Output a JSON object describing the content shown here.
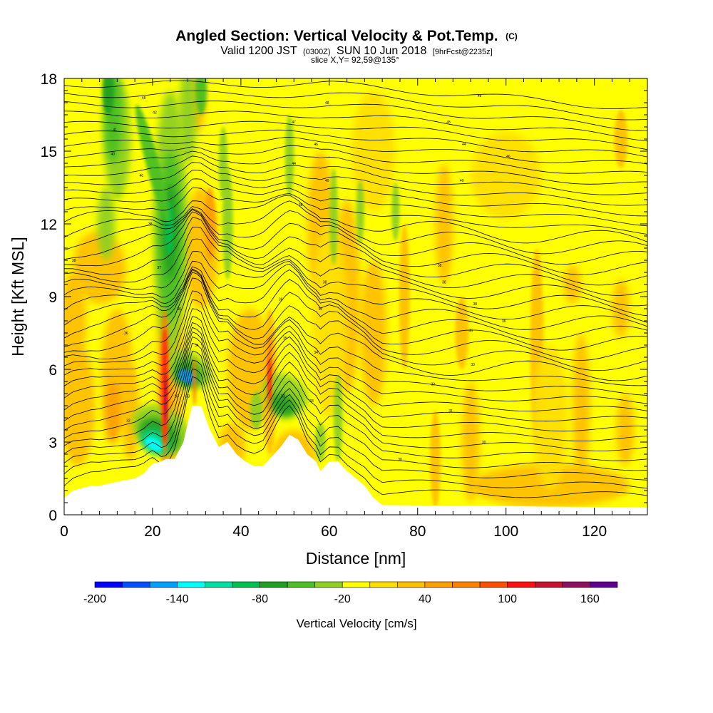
{
  "header": {
    "title_main": "Angled Section: Vertical Velocity & Pot.Temp.",
    "title_suffix": "(C)",
    "valid_a": "Valid 1200 JST",
    "valid_b": "(0300Z)",
    "valid_c": "SUN 10 Jun 2018",
    "valid_d": "[9hrFcst@2235z]",
    "slice": "slice X,Y= 92,59@135°"
  },
  "chart_data": {
    "type": "heatmap",
    "xlabel": "Distance [nm]",
    "ylabel": "Height [Kft MSL]",
    "xlim": [
      0,
      132
    ],
    "ylim": [
      0,
      18
    ],
    "x_ticks": [
      0,
      20,
      40,
      60,
      80,
      100,
      120
    ],
    "x_tick_labels": [
      "0",
      "20",
      "40",
      "60",
      "80",
      "100",
      "120"
    ],
    "y_ticks": [
      0,
      3,
      6,
      9,
      12,
      15,
      18
    ],
    "y_tick_labels": [
      "0",
      "3",
      "6",
      "9",
      "12",
      "15",
      "18"
    ],
    "background_field": "yellow (-20 to 20 cm/s) dominant",
    "colorbar": {
      "label": "Vertical Velocity [cm/s]",
      "min": -200,
      "max": 180,
      "step": 20,
      "tick_values": [
        -200,
        -140,
        -80,
        -20,
        40,
        100,
        160
      ],
      "tick_labels": [
        "-200",
        "-140",
        "-80",
        "-20",
        "40",
        "100",
        "160"
      ],
      "colors": [
        "#0000ff",
        "#0050ff",
        "#00a0ff",
        "#00ffff",
        "#00e0a0",
        "#00c050",
        "#20a020",
        "#4cc020",
        "#90d020",
        "#ffff00",
        "#ffe000",
        "#ffc000",
        "#ffa000",
        "#ff8000",
        "#ff5000",
        "#ff1010",
        "#c81030",
        "#901060",
        "#600090"
      ]
    },
    "terrain_heights_kft": [
      [
        0,
        0.7
      ],
      [
        2,
        1.0
      ],
      [
        6,
        1.2
      ],
      [
        8,
        1.2
      ],
      [
        13,
        1.4
      ],
      [
        16,
        1.5
      ],
      [
        18,
        1.7
      ],
      [
        20,
        2.1
      ],
      [
        22,
        2.2
      ],
      [
        23,
        2.3
      ],
      [
        25,
        2.3
      ],
      [
        27,
        3.0
      ],
      [
        28,
        3.8
      ],
      [
        29,
        4.5
      ],
      [
        31,
        4.5
      ],
      [
        33,
        3.5
      ],
      [
        35,
        2.8
      ],
      [
        37,
        3.0
      ],
      [
        39,
        2.5
      ],
      [
        41,
        2.2
      ],
      [
        43,
        2.0
      ],
      [
        45,
        2.0
      ],
      [
        47,
        2.4
      ],
      [
        49,
        2.8
      ],
      [
        51,
        3.3
      ],
      [
        53,
        3.1
      ],
      [
        55,
        2.5
      ],
      [
        57,
        2.2
      ],
      [
        58,
        1.8
      ],
      [
        60,
        2.2
      ],
      [
        62,
        2.2
      ],
      [
        64,
        1.8
      ],
      [
        66,
        1.5
      ],
      [
        68,
        1.2
      ],
      [
        70,
        0.7
      ],
      [
        72,
        0.4
      ],
      [
        132,
        0.3
      ]
    ],
    "theta_contour_labels": [
      {
        "x": 18,
        "y": 17.2,
        "v": "48"
      },
      {
        "x": 20.5,
        "y": 16.6,
        "v": "42"
      },
      {
        "x": 11.5,
        "y": 15.9,
        "v": "41"
      },
      {
        "x": 11,
        "y": 14.9,
        "v": "40"
      },
      {
        "x": 17.5,
        "y": 14.0,
        "v": "40"
      },
      {
        "x": 19.5,
        "y": 12.0,
        "v": "38"
      },
      {
        "x": 2.2,
        "y": 10.5,
        "v": "38"
      },
      {
        "x": 21.5,
        "y": 10.2,
        "v": "37"
      },
      {
        "x": 26,
        "y": 8.5,
        "v": "36"
      },
      {
        "x": 14,
        "y": 7.5,
        "v": "36"
      },
      {
        "x": 30,
        "y": 7.0,
        "v": "34"
      },
      {
        "x": 25.5,
        "y": 4.9,
        "v": "33"
      },
      {
        "x": 28,
        "y": 4.9,
        "v": "33"
      },
      {
        "x": 14.5,
        "y": 3.9,
        "v": "32"
      },
      {
        "x": 50,
        "y": 7.3,
        "v": "35"
      },
      {
        "x": 49.5,
        "y": 4.9,
        "v": "33"
      },
      {
        "x": 59.5,
        "y": 17.0,
        "v": "48"
      },
      {
        "x": 52,
        "y": 16.2,
        "v": "47"
      },
      {
        "x": 57,
        "y": 15.3,
        "v": "46"
      },
      {
        "x": 52,
        "y": 14.5,
        "v": "44"
      },
      {
        "x": 59.5,
        "y": 13.8,
        "v": "40"
      },
      {
        "x": 53.5,
        "y": 12.8,
        "v": "38"
      },
      {
        "x": 59,
        "y": 9.6,
        "v": "38"
      },
      {
        "x": 49,
        "y": 8.9,
        "v": "36"
      },
      {
        "x": 58,
        "y": 8.5,
        "v": "35"
      },
      {
        "x": 57,
        "y": 6.7,
        "v": "34"
      },
      {
        "x": 56,
        "y": 4.7,
        "v": "33"
      },
      {
        "x": 76,
        "y": 2.3,
        "v": "30"
      },
      {
        "x": 83.5,
        "y": 5.4,
        "v": "32"
      },
      {
        "x": 87.5,
        "y": 4.3,
        "v": "31"
      },
      {
        "x": 95,
        "y": 3.0,
        "v": "30"
      },
      {
        "x": 92.5,
        "y": 6.2,
        "v": "33"
      },
      {
        "x": 92,
        "y": 7.6,
        "v": "35"
      },
      {
        "x": 99.5,
        "y": 8.0,
        "v": "36"
      },
      {
        "x": 93,
        "y": 8.7,
        "v": "38"
      },
      {
        "x": 86,
        "y": 9.6,
        "v": "38"
      },
      {
        "x": 85,
        "y": 10.3,
        "v": "38"
      },
      {
        "x": 90,
        "y": 13.8,
        "v": "40"
      },
      {
        "x": 90.5,
        "y": 15.3,
        "v": "44"
      },
      {
        "x": 87,
        "y": 16.2,
        "v": "45"
      },
      {
        "x": 94,
        "y": 17.3,
        "v": "48"
      },
      {
        "x": 100.5,
        "y": 14.8,
        "v": "46"
      }
    ]
  }
}
